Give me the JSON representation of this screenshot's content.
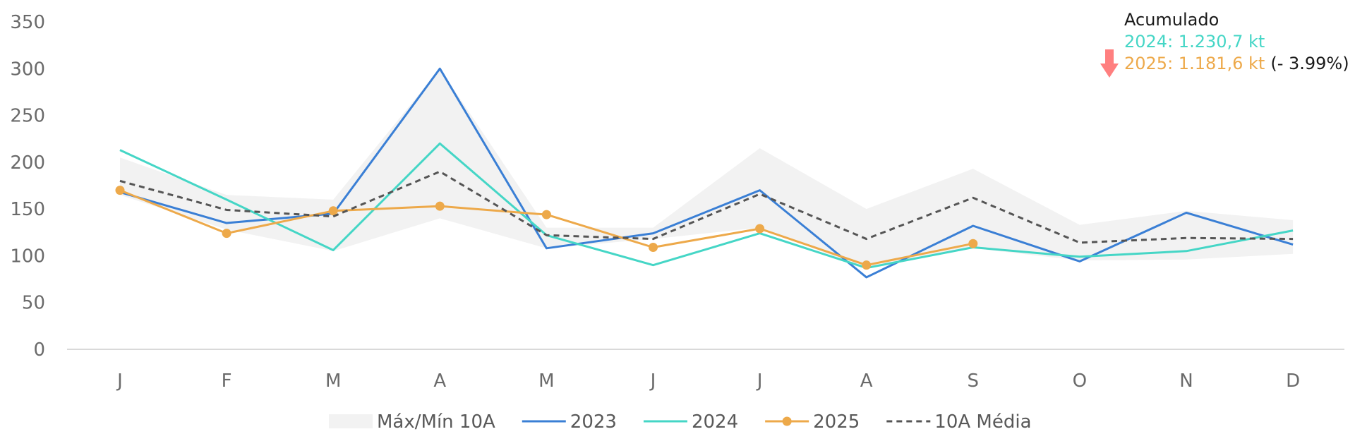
{
  "chart_data": {
    "type": "line",
    "categories": [
      "J",
      "F",
      "M",
      "A",
      "M",
      "J",
      "J",
      "A",
      "S",
      "O",
      "N",
      "D"
    ],
    "ylim": [
      0,
      350
    ],
    "yticks": [
      0,
      50,
      100,
      150,
      200,
      250,
      300,
      350
    ],
    "grid": false,
    "legend_position": "bottom",
    "band": {
      "name": "Máx/Mín 10A",
      "color": "#f2f2f2",
      "max": [
        205,
        165,
        160,
        300,
        130,
        130,
        215,
        150,
        193,
        133,
        148,
        138
      ],
      "min": [
        165,
        128,
        105,
        140,
        108,
        118,
        130,
        86,
        108,
        95,
        96,
        102
      ]
    },
    "series": [
      {
        "name": "2023",
        "color": "#3a7fd5",
        "dashed": false,
        "markers": false,
        "values": [
          168,
          135,
          145,
          300,
          108,
          124,
          170,
          77,
          132,
          94,
          146,
          112
        ]
      },
      {
        "name": "2024",
        "color": "#45d6c6",
        "dashed": false,
        "markers": false,
        "values": [
          213,
          160,
          106,
          220,
          122,
          90,
          124,
          87,
          109,
          99,
          105,
          127
        ]
      },
      {
        "name": "2025",
        "color": "#eda94a",
        "dashed": false,
        "markers": true,
        "values": [
          170,
          124,
          148,
          153,
          144,
          109,
          129,
          90,
          113,
          null,
          null,
          null
        ]
      },
      {
        "name": "10A Média",
        "color": "#555555",
        "dashed": true,
        "markers": false,
        "values": [
          180,
          149,
          142,
          190,
          122,
          118,
          166,
          118,
          162,
          114,
          119,
          118
        ]
      }
    ],
    "annotation": {
      "title": "Acumulado",
      "line1": "2024: 1.230,7 kt",
      "line1_color": "#45d6c6",
      "line2": "2025: 1.181,6 kt",
      "line2_color": "#eda94a",
      "change": "(- 3.99%)",
      "arrow_icon": "arrow-down-icon",
      "arrow_color": "#ff7f7f"
    }
  }
}
